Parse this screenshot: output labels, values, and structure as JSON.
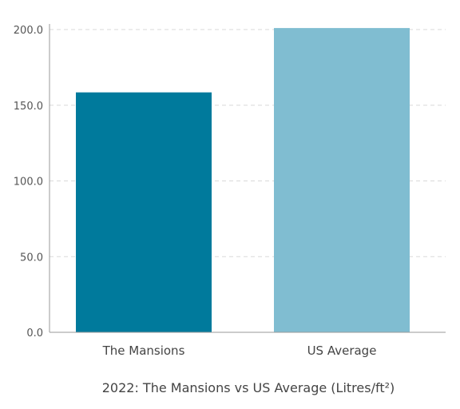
{
  "chart_data": {
    "type": "bar",
    "categories": [
      "The Mansions",
      "US Average"
    ],
    "values": [
      158.5,
      201
    ],
    "colors": [
      "#007a9c",
      "#80bdd1"
    ],
    "yticks": [
      "0.0",
      "50.0",
      "100.0",
      "150.0",
      "200.0"
    ],
    "ylim": [
      0,
      200
    ],
    "grid": true,
    "xlabel": "2022: The Mansions vs US Average (Litres/ft²)",
    "ylabel": "",
    "title": ""
  }
}
